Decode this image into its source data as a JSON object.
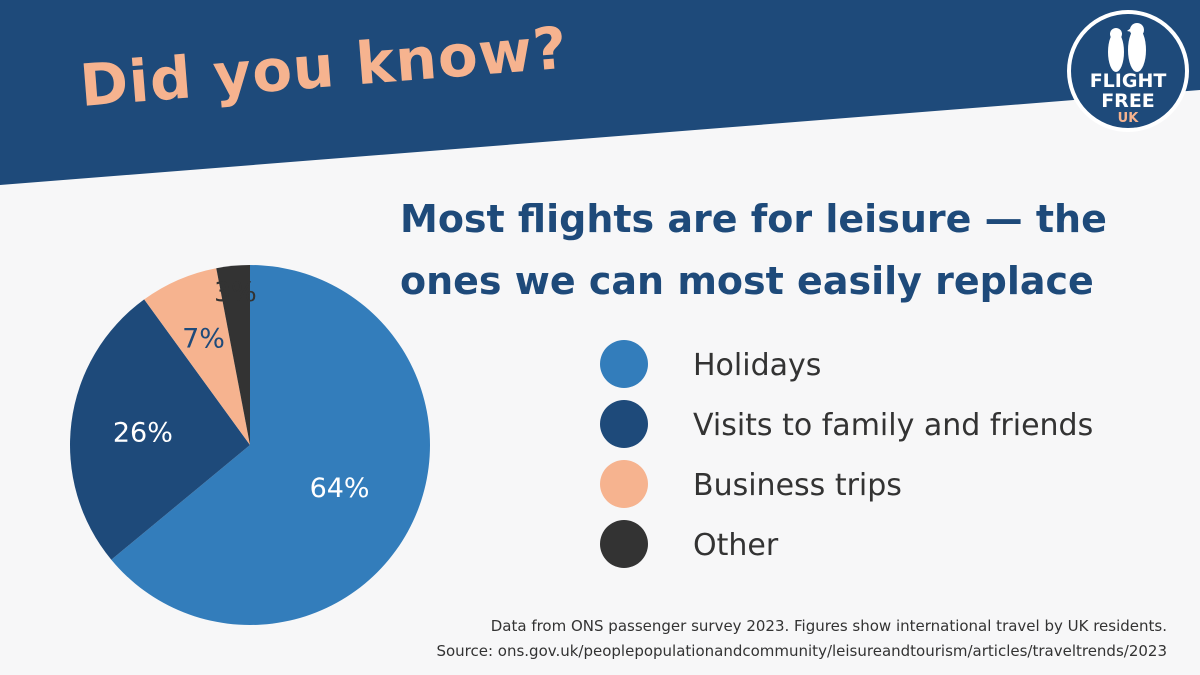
{
  "header": {
    "kicker": "Did you know?"
  },
  "logo": {
    "line1": "FLIGHT",
    "line2": "FREE",
    "line3": "UK"
  },
  "headline": {
    "line1": "Most flights are for leisure — the",
    "line2": "ones we can most easily replace"
  },
  "colors": {
    "navy": "#1e4a7a",
    "blue": "#337dbb",
    "peach": "#f6b38f",
    "dark": "#333333",
    "background": "#f7f7f8"
  },
  "chart_data": {
    "type": "pie",
    "title": "Most flights are for leisure — the ones we can most easily replace",
    "slices": [
      {
        "name": "Holidays",
        "value": 64,
        "label": "64%",
        "color": "#337dbb"
      },
      {
        "name": "Visits to family and friends",
        "value": 26,
        "label": "26%",
        "color": "#1e4a7a"
      },
      {
        "name": "Business trips",
        "value": 7,
        "label": "7%",
        "color": "#f6b38f"
      },
      {
        "name": "Other",
        "value": 3,
        "label": "3%",
        "color": "#333333"
      }
    ],
    "legend_position": "right"
  },
  "footnote": {
    "line1": "Data from ONS passenger survey 2023. Figures show international travel by UK residents.",
    "line2": "Source: ons.gov.uk/peoplepopulationandcommunity/leisureandtourism/articles/traveltrends/2023"
  }
}
